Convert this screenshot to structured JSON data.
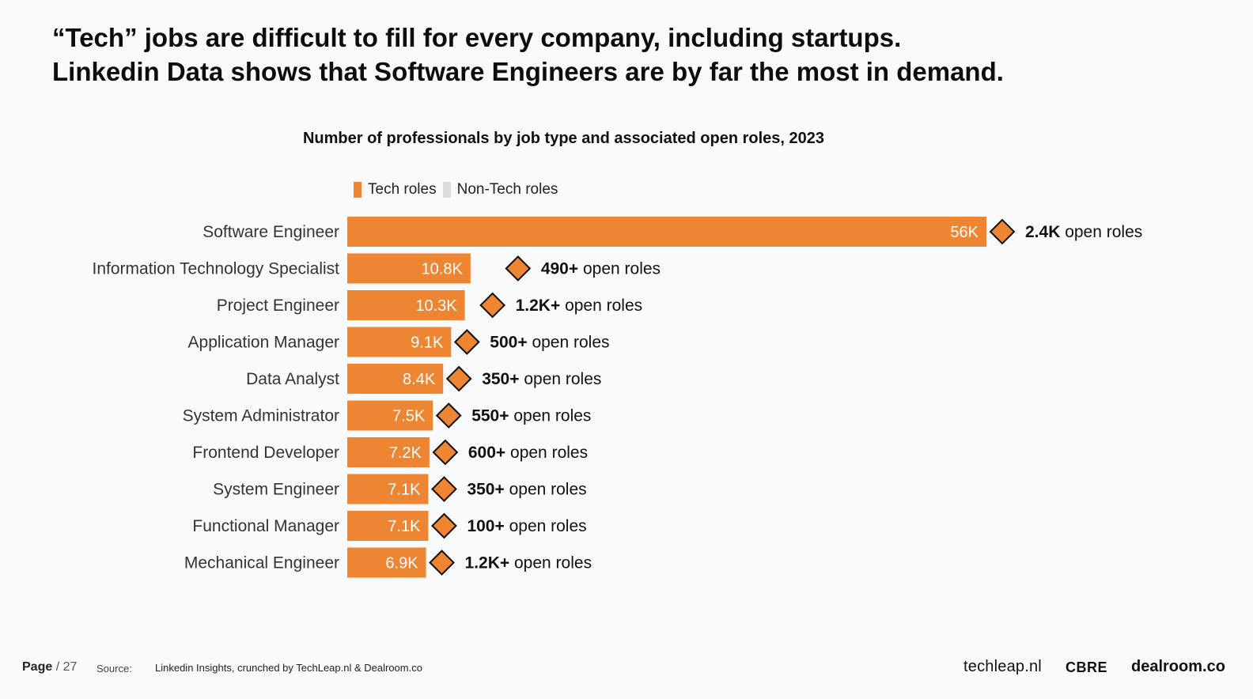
{
  "headline": {
    "line1": "“Tech” jobs are difficult to fill for every company, including startups.",
    "line2": "Linkedin Data shows that Software Engineers are by far the most in demand."
  },
  "legend": {
    "tech": "Tech roles",
    "nontech": "Non-Tech roles"
  },
  "colors": {
    "tech": "#ee8533",
    "nontech": "#dcdcdc",
    "diamond_stroke": "#111111"
  },
  "chart_data": {
    "type": "bar",
    "orientation": "horizontal",
    "title": "Number of professionals by job type and associated open roles, 2023",
    "xlabel": "",
    "ylabel": "",
    "xlim": [
      0,
      56000
    ],
    "categories": [
      "Software Engineer",
      "Information Technology Specialist",
      "Project Engineer",
      "Application Manager",
      "Data Analyst",
      "System Administrator",
      "Frontend Developer",
      "System Engineer",
      "Functional Manager",
      "Mechanical Engineer"
    ],
    "values": [
      56000,
      10800,
      10300,
      9100,
      8400,
      7500,
      7200,
      7100,
      7100,
      6900
    ],
    "value_labels": [
      "56K",
      "10.8K",
      "10.3K",
      "9.1K",
      "8.4K",
      "7.5K",
      "7.2K",
      "7.1K",
      "7.1K",
      "6.9K"
    ],
    "open_roles_bold": [
      "2.4K",
      "490+",
      "1.2K+",
      "500+",
      "350+",
      "550+",
      "600+",
      "350+",
      "100+",
      "1.2K+"
    ],
    "open_roles_suffix": " open roles",
    "series": [
      {
        "name": "Tech roles",
        "values": [
          56000,
          10800,
          10300,
          9100,
          8400,
          7500,
          7200,
          7100,
          7100,
          6900
        ]
      }
    ]
  },
  "footer": {
    "page_label": "Page",
    "page_total": "/ 27",
    "source_label": "Source:",
    "source_text": "Linkedin Insights, crunched by TechLeap.nl & Dealroom.co",
    "logo1": "techleap.nl",
    "logo2": "CBRE",
    "logo3": "dealroom.co"
  }
}
